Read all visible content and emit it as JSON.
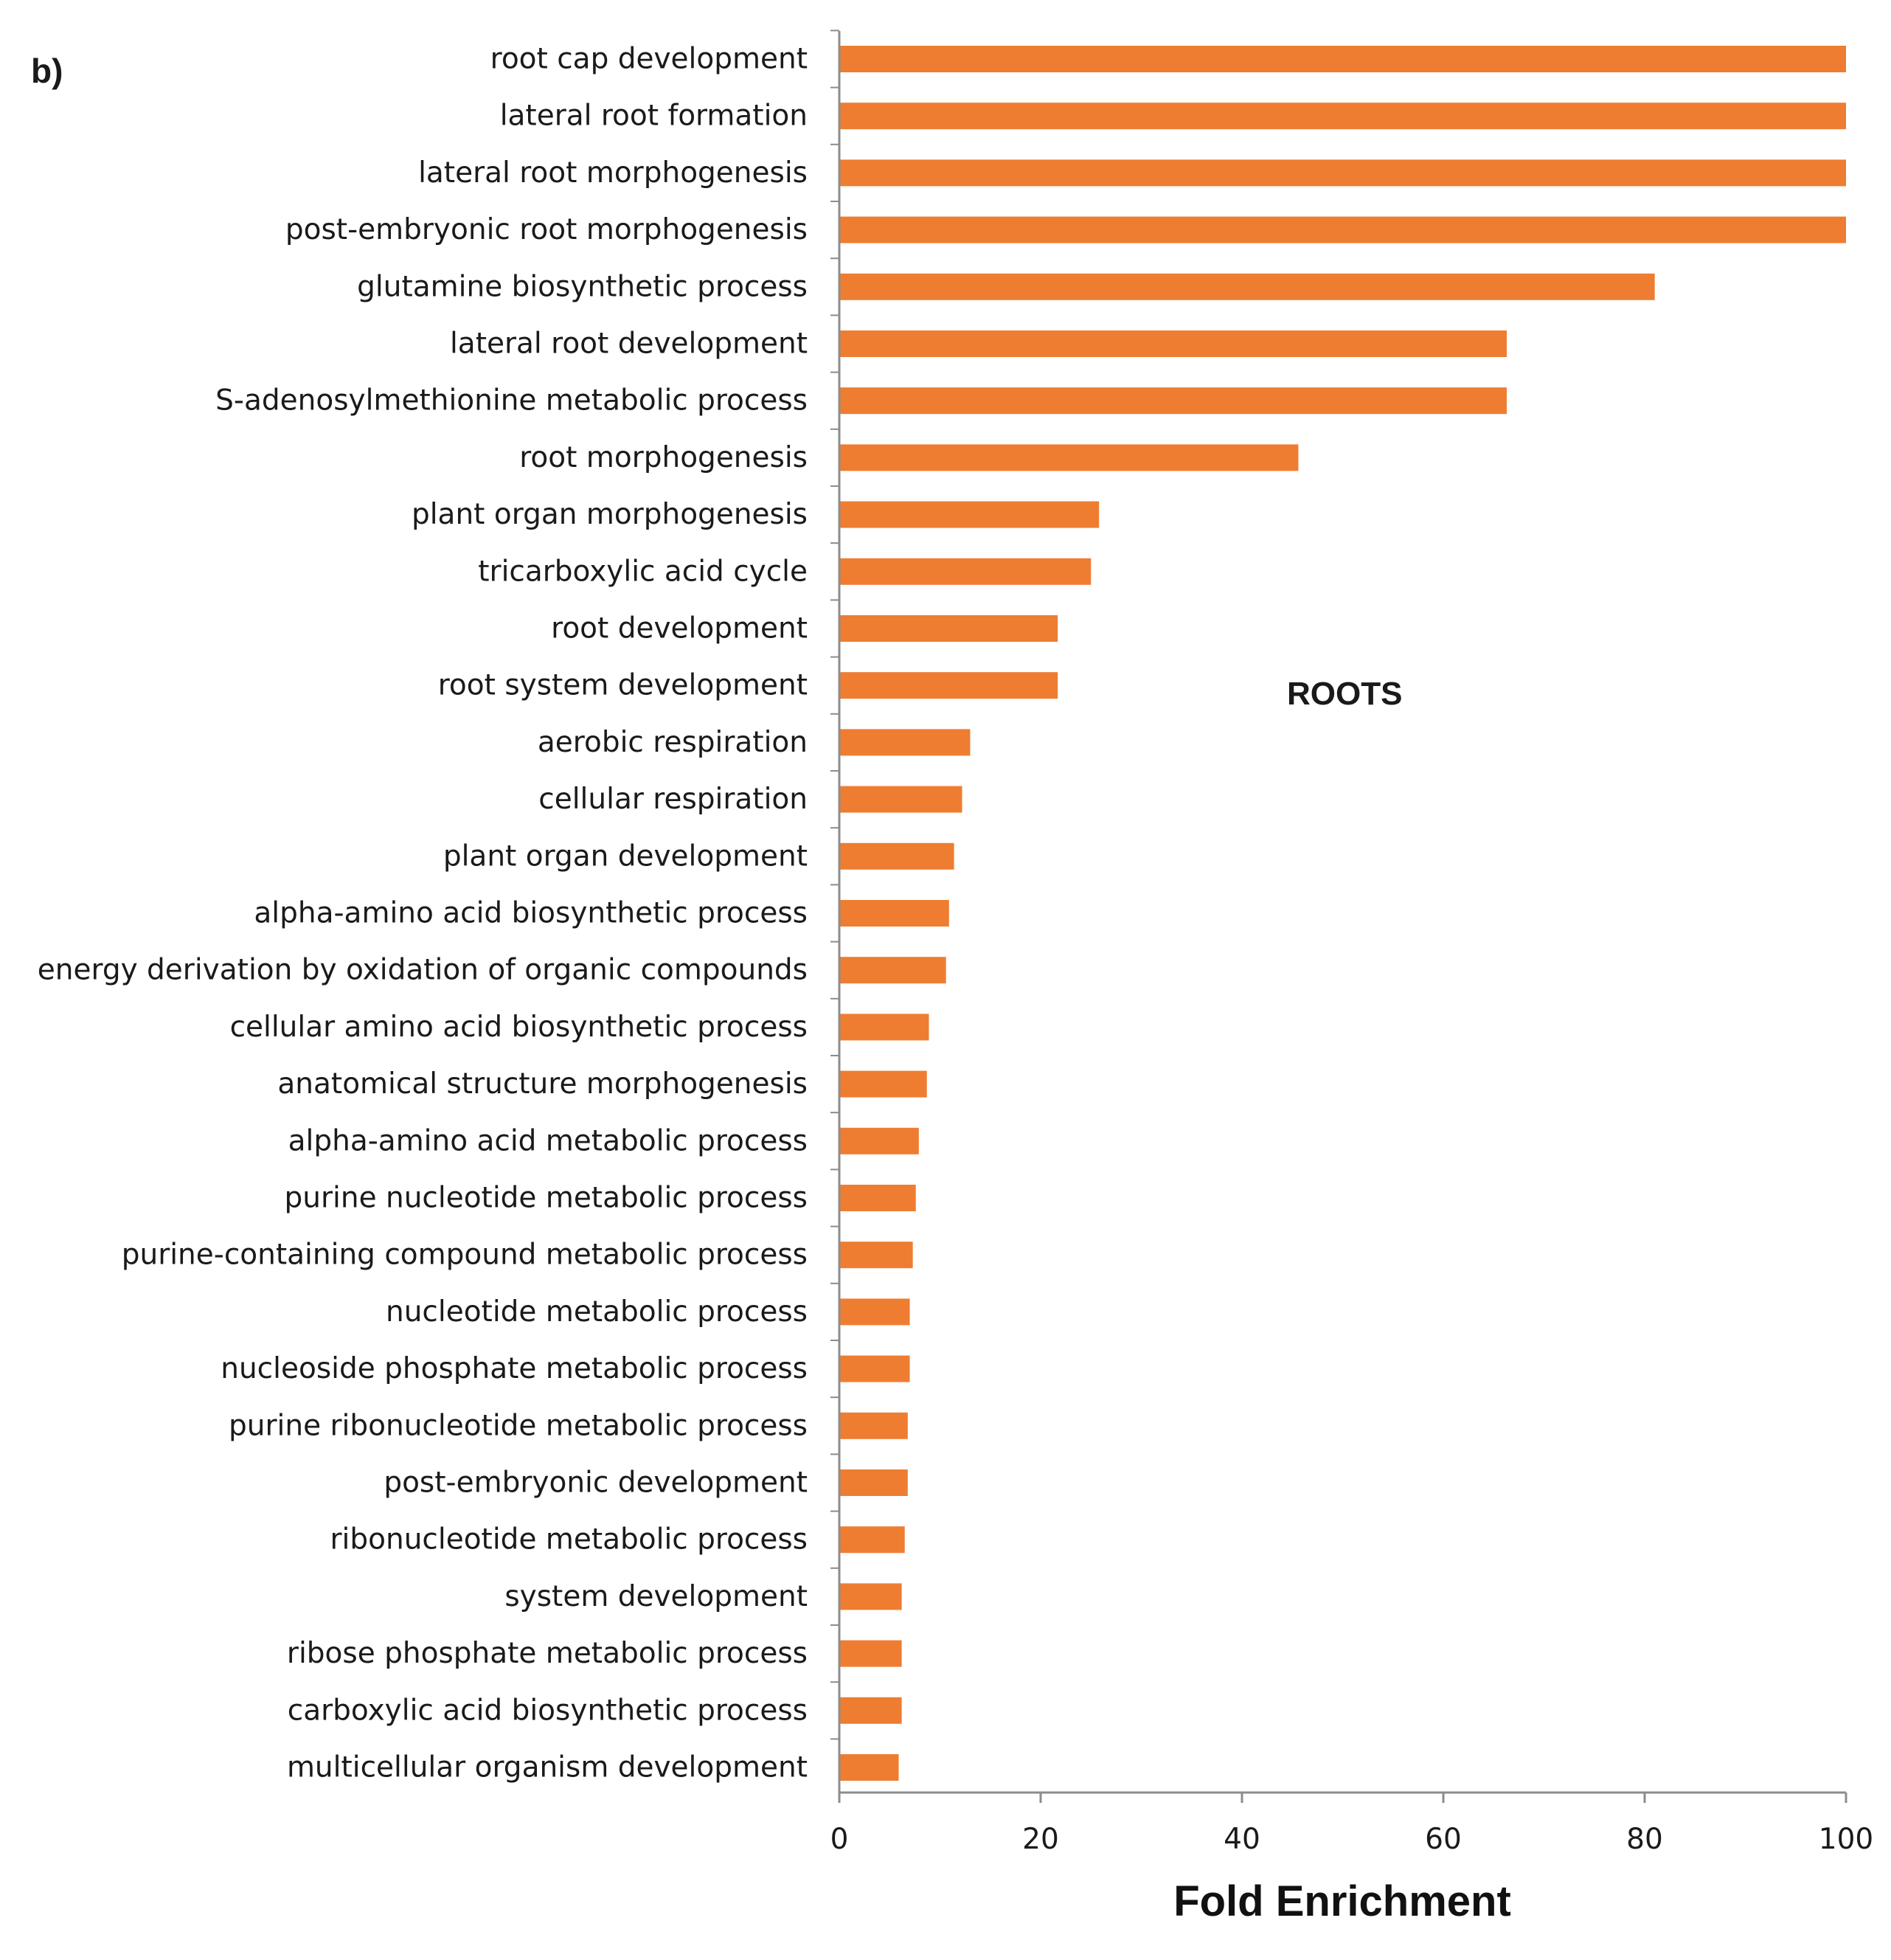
{
  "chart_data": {
    "type": "bar",
    "orientation": "horizontal",
    "panel_label": "b)",
    "annotation": "ROOTS",
    "xlabel": "Fold Enrichment",
    "ylabel": "",
    "xlim": [
      0,
      100
    ],
    "xticks": [
      0,
      20,
      40,
      60,
      80,
      100
    ],
    "grid": false,
    "bar_color": "#EE7D31",
    "categories": [
      "root cap development",
      "lateral root formation",
      "lateral root morphogenesis",
      "post-embryonic root morphogenesis",
      "glutamine biosynthetic process",
      "lateral root development",
      "S-adenosylmethionine metabolic process",
      "root morphogenesis",
      "plant organ morphogenesis",
      "tricarboxylic acid cycle",
      "root development",
      "root system development",
      "aerobic respiration",
      "cellular respiration",
      "plant organ development",
      "alpha-amino acid biosynthetic process",
      "energy derivation by oxidation of organic compounds",
      "cellular amino acid biosynthetic process",
      "anatomical structure morphogenesis",
      "alpha-amino acid metabolic process",
      "purine nucleotide metabolic process",
      "purine-containing compound metabolic process",
      "nucleotide metabolic process",
      "nucleoside phosphate metabolic process",
      "purine ribonucleotide metabolic process",
      "post-embryonic development",
      "ribonucleotide metabolic process",
      "system development",
      "ribose phosphate metabolic process",
      "carboxylic acid biosynthetic process",
      "multicellular organism development"
    ],
    "values": [
      100,
      100,
      100,
      100,
      81,
      66.3,
      66.3,
      45.6,
      25.8,
      25,
      21.7,
      21.7,
      13,
      12.2,
      11.4,
      10.9,
      10.6,
      8.9,
      8.7,
      7.9,
      7.6,
      7.3,
      7,
      7,
      6.8,
      6.8,
      6.5,
      6.2,
      6.2,
      6.2,
      5.9
    ]
  }
}
